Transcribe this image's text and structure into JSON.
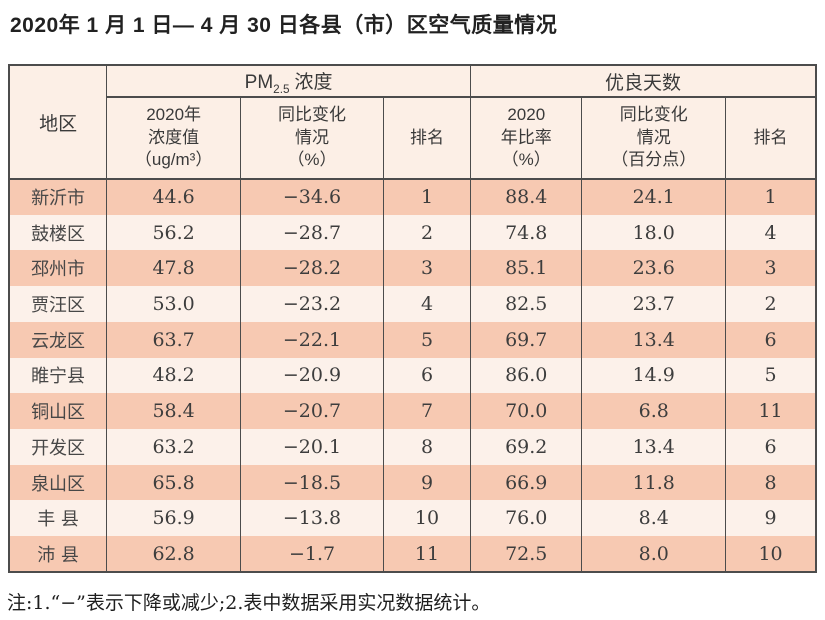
{
  "page": {
    "title": "2020年 1 月 1 日— 4 月 30 日各县（市）区空气质量情况",
    "note": "注:1.“−”表示下降或减少;2.表中数据采用实况数据统计。"
  },
  "colors": {
    "row_odd": "#f7c9b2",
    "row_even": "#fcf1ea",
    "header_bg": "#fcefe6",
    "border": "#4c4c4c"
  },
  "chart_data": {
    "type": "table",
    "title": "2020年 1 月 1 日— 4 月 30 日各县（市）区空气质量情况",
    "header": {
      "region": "地区",
      "groups": [
        {
          "prefix": "PM",
          "sub": "2.5",
          "suffix": "浓度"
        },
        {
          "label": "优良天数"
        }
      ],
      "columns": [
        "2020年\n浓度值\n（ug/m³）",
        "同比变化\n情况\n（%）",
        "排名",
        "2020\n年比率\n（%）",
        "同比变化\n情况\n（百分点）",
        "排名"
      ]
    },
    "rows": [
      [
        "新沂市",
        "44.6",
        "−34.6",
        "1",
        "88.4",
        "24.1",
        "1"
      ],
      [
        "鼓楼区",
        "56.2",
        "−28.7",
        "2",
        "74.8",
        "18.0",
        "4"
      ],
      [
        "邳州市",
        "47.8",
        "−28.2",
        "3",
        "85.1",
        "23.6",
        "3"
      ],
      [
        "贾汪区",
        "53.0",
        "−23.2",
        "4",
        "82.5",
        "23.7",
        "2"
      ],
      [
        "云龙区",
        "63.7",
        "−22.1",
        "5",
        "69.7",
        "13.4",
        "6"
      ],
      [
        "睢宁县",
        "48.2",
        "−20.9",
        "6",
        "86.0",
        "14.9",
        "5"
      ],
      [
        "铜山区",
        "58.4",
        "−20.7",
        "7",
        "70.0",
        "6.8",
        "11"
      ],
      [
        "开发区",
        "63.2",
        "−20.1",
        "8",
        "69.2",
        "13.4",
        "6"
      ],
      [
        "泉山区",
        "65.8",
        "−18.5",
        "9",
        "66.9",
        "11.8",
        "8"
      ],
      [
        "丰 县",
        "56.9",
        "−13.8",
        "10",
        "76.0",
        "8.4",
        "9"
      ],
      [
        "沛 县",
        "62.8",
        "−1.7",
        "11",
        "72.5",
        "8.0",
        "10"
      ]
    ]
  }
}
